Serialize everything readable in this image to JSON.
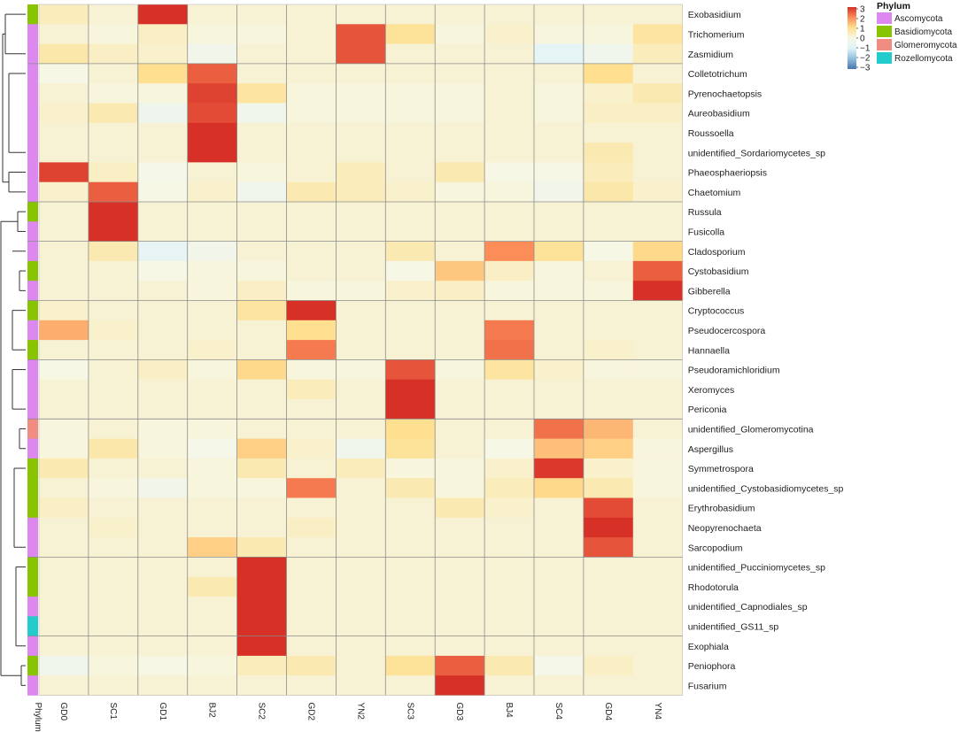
{
  "chart_data": {
    "type": "heatmap",
    "title": "",
    "annotation_label": "Phylum",
    "columns": [
      "GD0",
      "SC1",
      "GD1",
      "BJ2",
      "SC2",
      "GD2",
      "YN2",
      "SC3",
      "GD3",
      "BJ4",
      "SC4",
      "GD4",
      "YN4"
    ],
    "rows": [
      "Exobasidium",
      "Trichomerium",
      "Zasmidium",
      "Colletotrichum",
      "Pyrenochaetopsis",
      "Aureobasidium",
      "Roussoella",
      "unidentified_Sordariomycetes_sp",
      "Phaeosphaeriopsis",
      "Chaetomium",
      "Russula",
      "Fusicolla",
      "Cladosporium",
      "Cystobasidium",
      "Gibberella",
      "Cryptococcus",
      "Pseudocercospora",
      "Hannaella",
      "Pseudoramichloridium",
      "Xeromyces",
      "Periconia",
      "unidentified_Glomeromycotina",
      "Aspergillus",
      "Symmetrospora",
      "unidentified_Cystobasidiomycetes_sp",
      "Erythrobasidium",
      "Neopyrenochaeta",
      "Sarcopodium",
      "unidentified_Pucciniomycetes_sp",
      "Rhodotorula",
      "unidentified_Capnodiales_sp",
      "unidentified_GS11_sp",
      "Exophiala",
      "Peniophora",
      "Fusarium"
    ],
    "row_phylum": [
      "Basidiomycota",
      "Ascomycota",
      "Ascomycota",
      "Ascomycota",
      "Ascomycota",
      "Ascomycota",
      "Ascomycota",
      "Ascomycota",
      "Ascomycota",
      "Ascomycota",
      "Basidiomycota",
      "Ascomycota",
      "Ascomycota",
      "Basidiomycota",
      "Ascomycota",
      "Basidiomycota",
      "Ascomycota",
      "Basidiomycota",
      "Ascomycota",
      "Ascomycota",
      "Ascomycota",
      "Glomeromycota",
      "Ascomycota",
      "Basidiomycota",
      "Basidiomycota",
      "Basidiomycota",
      "Ascomycota",
      "Ascomycota",
      "Basidiomycota",
      "Basidiomycota",
      "Ascomycota",
      "Rozellomycota",
      "Ascomycota",
      "Basidiomycota",
      "Ascomycota"
    ],
    "values": [
      [
        0.5,
        0.2,
        3.2,
        0.2,
        0.2,
        0.2,
        0.2,
        0.2,
        0.2,
        0.2,
        0.2,
        0.2,
        0.2
      ],
      [
        0.2,
        0.1,
        0.4,
        0.1,
        0.1,
        0.2,
        2.6,
        0.9,
        0.1,
        0.3,
        0.1,
        0.1,
        0.8
      ],
      [
        0.7,
        0.4,
        0.3,
        -0.2,
        0.2,
        0.2,
        2.6,
        0.2,
        0.2,
        0.2,
        -0.8,
        -0.3,
        0.5
      ],
      [
        0.0,
        0.2,
        1.0,
        2.5,
        0.2,
        0.2,
        0.2,
        0.2,
        0.2,
        0.2,
        0.2,
        1.0,
        0.2
      ],
      [
        0.2,
        0.1,
        0.1,
        2.8,
        0.8,
        0.1,
        0.1,
        0.1,
        0.1,
        0.2,
        0.1,
        0.3,
        0.6
      ],
      [
        0.3,
        0.6,
        -0.4,
        2.7,
        -0.3,
        0.1,
        0.1,
        0.1,
        0.1,
        0.2,
        0.1,
        0.4,
        0.4
      ],
      [
        0.2,
        0.2,
        0.2,
        3.1,
        0.2,
        0.2,
        0.2,
        0.2,
        0.2,
        0.2,
        0.2,
        0.2,
        0.2
      ],
      [
        0.2,
        0.2,
        0.2,
        3.1,
        0.2,
        0.2,
        0.2,
        0.2,
        0.2,
        0.2,
        0.2,
        0.6,
        0.2
      ],
      [
        2.8,
        0.4,
        -0.1,
        0.2,
        0.1,
        0.2,
        0.5,
        0.2,
        0.6,
        0.0,
        0.0,
        0.5,
        0.2
      ],
      [
        0.3,
        2.5,
        0.0,
        0.3,
        -0.3,
        0.6,
        0.5,
        0.3,
        0.1,
        0.1,
        -0.2,
        0.7,
        0.3
      ],
      [
        0.2,
        3.2,
        0.2,
        0.2,
        0.2,
        0.2,
        0.2,
        0.2,
        0.2,
        0.2,
        0.2,
        0.2,
        0.2
      ],
      [
        0.2,
        3.2,
        0.2,
        0.2,
        0.2,
        0.2,
        0.2,
        0.2,
        0.2,
        0.2,
        0.2,
        0.2,
        0.2
      ],
      [
        0.2,
        0.6,
        -0.7,
        -0.2,
        0.2,
        0.2,
        0.2,
        0.6,
        0.2,
        2.0,
        0.9,
        0.0,
        1.1
      ],
      [
        0.2,
        0.2,
        0.0,
        0.1,
        0.1,
        0.2,
        0.2,
        0.0,
        1.3,
        0.4,
        0.1,
        0.2,
        2.5
      ],
      [
        0.2,
        0.2,
        0.2,
        0.1,
        0.4,
        0.1,
        0.1,
        0.3,
        0.4,
        0.1,
        0.1,
        0.1,
        3.1
      ],
      [
        0.3,
        0.2,
        0.2,
        0.2,
        0.8,
        3.1,
        0.2,
        0.2,
        0.2,
        0.2,
        0.2,
        0.2,
        0.2
      ],
      [
        1.6,
        0.3,
        0.2,
        0.2,
        0.2,
        1.0,
        0.2,
        0.2,
        0.2,
        2.2,
        0.2,
        0.2,
        0.2
      ],
      [
        0.2,
        0.2,
        0.2,
        0.3,
        0.2,
        2.2,
        0.2,
        0.2,
        0.2,
        2.3,
        0.2,
        0.3,
        0.2
      ],
      [
        0.0,
        0.2,
        0.4,
        0.1,
        1.1,
        0.1,
        0.1,
        2.6,
        0.1,
        0.8,
        0.3,
        0.1,
        0.1
      ],
      [
        0.2,
        0.2,
        0.2,
        0.2,
        0.2,
        0.5,
        0.2,
        3.1,
        0.2,
        0.2,
        0.2,
        0.2,
        0.2
      ],
      [
        0.2,
        0.2,
        0.2,
        0.2,
        0.2,
        0.2,
        0.2,
        3.1,
        0.2,
        0.2,
        0.2,
        0.2,
        0.2
      ],
      [
        0.1,
        0.2,
        0.1,
        0.1,
        0.2,
        0.2,
        0.2,
        1.0,
        0.2,
        0.2,
        2.3,
        1.5,
        0.2
      ],
      [
        0.1,
        0.7,
        0.1,
        -0.1,
        1.2,
        0.3,
        -0.3,
        0.9,
        0.2,
        0.0,
        1.4,
        1.2,
        0.1
      ],
      [
        0.6,
        0.2,
        0.2,
        0.1,
        0.6,
        0.2,
        0.5,
        0.1,
        0.1,
        0.3,
        2.9,
        0.3,
        0.1
      ],
      [
        0.2,
        0.1,
        -0.2,
        0.1,
        0.1,
        2.2,
        0.2,
        0.6,
        0.1,
        0.5,
        1.1,
        0.6,
        0.1
      ],
      [
        0.4,
        0.2,
        0.2,
        0.2,
        0.2,
        0.2,
        0.2,
        0.2,
        0.6,
        0.3,
        0.2,
        2.7,
        0.2
      ],
      [
        0.2,
        0.3,
        0.2,
        0.2,
        0.2,
        0.4,
        0.2,
        0.2,
        0.2,
        0.2,
        0.2,
        3.2,
        0.2
      ],
      [
        0.2,
        0.2,
        0.2,
        1.2,
        0.6,
        0.2,
        0.2,
        0.2,
        0.2,
        0.2,
        0.2,
        2.6,
        0.2
      ],
      [
        0.2,
        0.2,
        0.2,
        0.2,
        3.2,
        0.2,
        0.2,
        0.2,
        0.2,
        0.2,
        0.2,
        0.2,
        0.2
      ],
      [
        0.2,
        0.2,
        0.2,
        0.6,
        3.2,
        0.2,
        0.2,
        0.2,
        0.2,
        0.2,
        0.2,
        0.2,
        0.2
      ],
      [
        0.2,
        0.2,
        0.2,
        0.2,
        3.2,
        0.2,
        0.2,
        0.2,
        0.2,
        0.2,
        0.2,
        0.2,
        0.2
      ],
      [
        0.2,
        0.2,
        0.2,
        0.2,
        3.2,
        0.2,
        0.2,
        0.2,
        0.2,
        0.2,
        0.2,
        0.2,
        0.2
      ],
      [
        0.2,
        0.2,
        0.2,
        0.2,
        3.2,
        0.2,
        0.2,
        0.2,
        0.2,
        0.2,
        0.2,
        0.2,
        0.2
      ],
      [
        -0.3,
        0.1,
        0.0,
        0.1,
        0.5,
        0.6,
        0.2,
        0.9,
        2.5,
        0.6,
        -0.1,
        0.4,
        0.2
      ],
      [
        0.2,
        0.2,
        0.2,
        0.2,
        0.2,
        0.2,
        0.2,
        0.2,
        3.2,
        0.2,
        0.2,
        0.2,
        0.2
      ]
    ],
    "row_group_dividers_after": [
      2,
      9,
      11,
      14,
      17,
      20,
      27,
      31
    ],
    "col_group_dividers_after": [
      1,
      2,
      3,
      4,
      5,
      6,
      7,
      8,
      9,
      10,
      11
    ],
    "colorscale": {
      "range": [
        -3,
        3
      ],
      "stops": [
        [
          -3,
          "#4575b4"
        ],
        [
          -2,
          "#91bfdb"
        ],
        [
          -1,
          "#e0f3f8"
        ],
        [
          0,
          "#f7f7e6"
        ],
        [
          1,
          "#fee090"
        ],
        [
          2,
          "#fc8d59"
        ],
        [
          3,
          "#d73027"
        ]
      ],
      "ticks": [
        "3",
        "2",
        "1",
        "0",
        "−1",
        "−2",
        "−3"
      ]
    },
    "legend": {
      "title": "Phylum",
      "placement": "top-right",
      "entries": [
        {
          "name": "Ascomycota",
          "color": "#dd88ee"
        },
        {
          "name": "Basidiomycota",
          "color": "#88c400"
        },
        {
          "name": "Glomeromycota",
          "color": "#f08c80"
        },
        {
          "name": "Rozellomycota",
          "color": "#22cccc"
        }
      ]
    }
  }
}
